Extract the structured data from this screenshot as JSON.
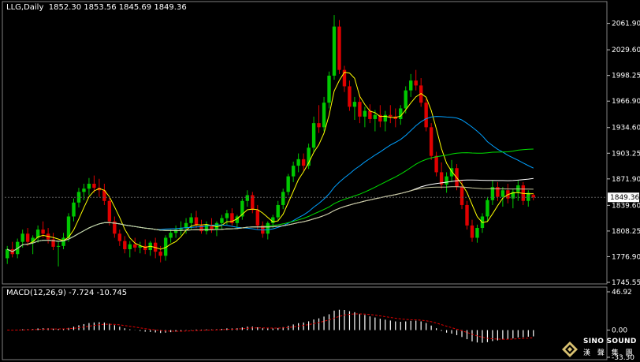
{
  "header": {
    "symbol": "LLG,Daily",
    "ohlc": "1852.30 1853.56 1845.69 1849.36"
  },
  "macd_header": {
    "label": "MACD(12,26,9)",
    "values": "-7.724 -10.745"
  },
  "price_label": "1849.36",
  "watermark": {
    "brand": "SINO SOUND",
    "chinese": "漢 聲 集 團"
  },
  "colors": {
    "background": "#000000",
    "bull": "#00c800",
    "bear": "#e00000",
    "ma_fast": "#ffff00",
    "ma_mid": "#00a0ff",
    "ma_slow": "#00e000",
    "ma_long": "#ffffff",
    "ma_longest": "#c8c8a0",
    "macd_hist": "#ffffff",
    "macd_signal": "#e00000"
  },
  "chart_data": [
    {
      "type": "candlestick",
      "title": "LLG,Daily",
      "y_ticks": [
        2061.9,
        2029.6,
        1998.25,
        1966.9,
        1934.6,
        1903.25,
        1871.9,
        1839.6,
        1808.25,
        1776.9,
        1745.55
      ],
      "ylim": [
        1745.55,
        2075
      ],
      "last_price": 1849.36,
      "ohlc": [
        [
          1775,
          1790,
          1768,
          1786
        ],
        [
          1786,
          1795,
          1776,
          1780
        ],
        [
          1780,
          1799,
          1775,
          1795
        ],
        [
          1795,
          1810,
          1788,
          1805
        ],
        [
          1805,
          1812,
          1790,
          1795
        ],
        [
          1795,
          1803,
          1780,
          1800
        ],
        [
          1800,
          1815,
          1794,
          1810
        ],
        [
          1810,
          1820,
          1800,
          1805
        ],
        [
          1805,
          1812,
          1793,
          1798
        ],
        [
          1798,
          1806,
          1785,
          1789
        ],
        [
          1789,
          1795,
          1765,
          1790
        ],
        [
          1790,
          1806,
          1786,
          1800
        ],
        [
          1800,
          1830,
          1795,
          1826
        ],
        [
          1826,
          1848,
          1820,
          1843
        ],
        [
          1843,
          1861,
          1837,
          1856
        ],
        [
          1856,
          1866,
          1846,
          1860
        ],
        [
          1860,
          1873,
          1852,
          1866
        ],
        [
          1866,
          1876,
          1855,
          1861
        ],
        [
          1861,
          1872,
          1850,
          1858
        ],
        [
          1858,
          1866,
          1840,
          1845
        ],
        [
          1845,
          1850,
          1815,
          1820
        ],
        [
          1820,
          1826,
          1800,
          1805
        ],
        [
          1805,
          1810,
          1790,
          1796
        ],
        [
          1796,
          1802,
          1781,
          1786
        ],
        [
          1786,
          1796,
          1776,
          1792
        ],
        [
          1792,
          1800,
          1783,
          1788
        ],
        [
          1788,
          1795,
          1781,
          1790
        ],
        [
          1790,
          1798,
          1780,
          1785
        ],
        [
          1785,
          1796,
          1778,
          1794
        ],
        [
          1794,
          1800,
          1775,
          1783
        ],
        [
          1783,
          1790,
          1770,
          1778
        ],
        [
          1778,
          1803,
          1772,
          1800
        ],
        [
          1800,
          1810,
          1794,
          1806
        ],
        [
          1806,
          1815,
          1800,
          1810
        ],
        [
          1810,
          1820,
          1803,
          1812
        ],
        [
          1812,
          1824,
          1805,
          1818
        ],
        [
          1818,
          1830,
          1810,
          1825
        ],
        [
          1825,
          1833,
          1812,
          1815
        ],
        [
          1815,
          1822,
          1805,
          1808
        ],
        [
          1808,
          1820,
          1804,
          1816
        ],
        [
          1816,
          1824,
          1806,
          1810
        ],
        [
          1810,
          1820,
          1802,
          1818
        ],
        [
          1818,
          1828,
          1810,
          1824
        ],
        [
          1824,
          1834,
          1816,
          1830
        ],
        [
          1830,
          1836,
          1815,
          1818
        ],
        [
          1818,
          1828,
          1812,
          1826
        ],
        [
          1826,
          1848,
          1822,
          1845
        ],
        [
          1845,
          1858,
          1838,
          1852
        ],
        [
          1852,
          1856,
          1830,
          1834
        ],
        [
          1834,
          1840,
          1810,
          1815
        ],
        [
          1815,
          1820,
          1800,
          1805
        ],
        [
          1805,
          1820,
          1798,
          1818
        ],
        [
          1818,
          1828,
          1812,
          1825
        ],
        [
          1825,
          1845,
          1820,
          1840
        ],
        [
          1840,
          1860,
          1835,
          1856
        ],
        [
          1856,
          1878,
          1852,
          1875
        ],
        [
          1875,
          1893,
          1868,
          1888
        ],
        [
          1888,
          1903,
          1880,
          1896
        ],
        [
          1896,
          1903,
          1882,
          1888
        ],
        [
          1888,
          1915,
          1884,
          1910
        ],
        [
          1910,
          1948,
          1905,
          1940
        ],
        [
          1940,
          1962,
          1928,
          1935
        ],
        [
          1935,
          1972,
          1930,
          1965
        ],
        [
          1965,
          2003,
          1958,
          1998
        ],
        [
          1998,
          2072,
          1993,
          2058
        ],
        [
          2058,
          2066,
          2000,
          2005
        ],
        [
          2005,
          2010,
          1978,
          1985
        ],
        [
          1985,
          1992,
          1955,
          1960
        ],
        [
          1960,
          1972,
          1944,
          1966
        ],
        [
          1966,
          1975,
          1940,
          1948
        ],
        [
          1948,
          1960,
          1935,
          1955
        ],
        [
          1955,
          1963,
          1940,
          1945
        ],
        [
          1945,
          1956,
          1930,
          1950
        ],
        [
          1950,
          1962,
          1935,
          1942
        ],
        [
          1942,
          1955,
          1930,
          1950
        ],
        [
          1950,
          1962,
          1940,
          1948
        ],
        [
          1948,
          1958,
          1935,
          1945
        ],
        [
          1945,
          1962,
          1938,
          1958
        ],
        [
          1958,
          1985,
          1952,
          1980
        ],
        [
          1980,
          2000,
          1972,
          1992
        ],
        [
          1992,
          2005,
          1980,
          1986
        ],
        [
          1986,
          1995,
          1960,
          1965
        ],
        [
          1965,
          1970,
          1930,
          1935
        ],
        [
          1935,
          1940,
          1895,
          1900
        ],
        [
          1900,
          1905,
          1875,
          1880
        ],
        [
          1880,
          1892,
          1860,
          1865
        ],
        [
          1865,
          1880,
          1855,
          1875
        ],
        [
          1875,
          1895,
          1868,
          1885
        ],
        [
          1885,
          1890,
          1858,
          1862
        ],
        [
          1862,
          1870,
          1835,
          1840
        ],
        [
          1840,
          1845,
          1810,
          1815
        ],
        [
          1815,
          1822,
          1795,
          1800
        ],
        [
          1800,
          1816,
          1794,
          1812
        ],
        [
          1812,
          1830,
          1806,
          1826
        ],
        [
          1826,
          1850,
          1820,
          1846
        ],
        [
          1846,
          1870,
          1840,
          1862
        ],
        [
          1862,
          1868,
          1845,
          1850
        ],
        [
          1850,
          1862,
          1838,
          1858
        ],
        [
          1858,
          1866,
          1842,
          1848
        ],
        [
          1848,
          1860,
          1836,
          1856
        ],
        [
          1856,
          1870,
          1845,
          1864
        ],
        [
          1864,
          1868,
          1840,
          1845
        ],
        [
          1845,
          1858,
          1838,
          1855
        ],
        [
          1852.3,
          1853.56,
          1845.69,
          1849.36
        ]
      ],
      "moving_averages": [
        {
          "color_key": "ma_fast",
          "period": 5
        },
        {
          "color_key": "ma_mid",
          "period": 30
        },
        {
          "color_key": "ma_slow",
          "period": 50
        },
        {
          "color_key": "ma_long",
          "period": 80
        },
        {
          "color_key": "ma_longest",
          "period": 120
        }
      ]
    },
    {
      "type": "bar",
      "title": "MACD(12,26,9) -7.724 -10.745",
      "y_ticks": [
        46.92,
        0.0,
        -33.3
      ],
      "ylim": [
        -33.3,
        46.92
      ],
      "main": -7.724,
      "signal": -10.745
    }
  ]
}
